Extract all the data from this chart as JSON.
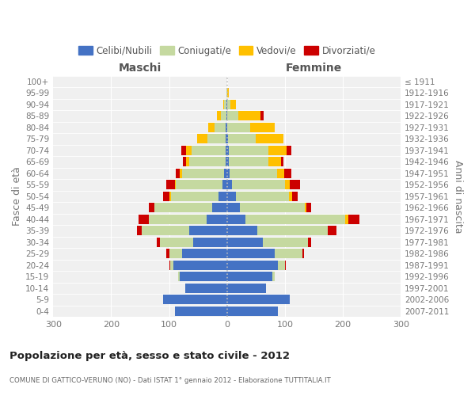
{
  "age_groups": [
    "0-4",
    "5-9",
    "10-14",
    "15-19",
    "20-24",
    "25-29",
    "30-34",
    "35-39",
    "40-44",
    "45-49",
    "50-54",
    "55-59",
    "60-64",
    "65-69",
    "70-74",
    "75-79",
    "80-84",
    "85-89",
    "90-94",
    "95-99",
    "100+"
  ],
  "birth_years": [
    "2007-2011",
    "2002-2006",
    "1997-2001",
    "1992-1996",
    "1987-1991",
    "1982-1986",
    "1977-1981",
    "1972-1976",
    "1967-1971",
    "1962-1966",
    "1957-1961",
    "1952-1956",
    "1947-1951",
    "1942-1946",
    "1937-1941",
    "1932-1936",
    "1927-1931",
    "1922-1926",
    "1917-1921",
    "1912-1916",
    "≤ 1911"
  ],
  "males": {
    "celibi": [
      90,
      110,
      72,
      82,
      92,
      78,
      58,
      65,
      35,
      25,
      15,
      8,
      5,
      3,
      3,
      2,
      2,
      1,
      1,
      0,
      0
    ],
    "coniugati": [
      0,
      0,
      0,
      2,
      6,
      22,
      58,
      82,
      100,
      100,
      82,
      80,
      72,
      62,
      58,
      32,
      20,
      10,
      4,
      1,
      0
    ],
    "vedovi": [
      0,
      0,
      0,
      0,
      0,
      0,
      0,
      0,
      0,
      0,
      2,
      2,
      4,
      6,
      10,
      18,
      10,
      6,
      1,
      0,
      0
    ],
    "divorziati": [
      0,
      0,
      0,
      0,
      2,
      5,
      5,
      8,
      18,
      10,
      12,
      15,
      8,
      5,
      8,
      0,
      0,
      0,
      0,
      0,
      0
    ]
  },
  "females": {
    "nubili": [
      88,
      108,
      68,
      78,
      88,
      82,
      62,
      52,
      32,
      22,
      15,
      8,
      5,
      3,
      3,
      2,
      0,
      0,
      0,
      0,
      0
    ],
    "coniugate": [
      0,
      0,
      0,
      4,
      12,
      48,
      78,
      122,
      172,
      112,
      92,
      92,
      82,
      68,
      68,
      48,
      40,
      20,
      6,
      1,
      0
    ],
    "vedove": [
      0,
      0,
      0,
      0,
      0,
      0,
      0,
      0,
      5,
      3,
      5,
      8,
      12,
      22,
      32,
      48,
      42,
      38,
      10,
      2,
      0
    ],
    "divorziate": [
      0,
      0,
      0,
      0,
      2,
      3,
      5,
      15,
      20,
      8,
      10,
      18,
      12,
      5,
      8,
      0,
      0,
      5,
      0,
      0,
      0
    ]
  },
  "colors": {
    "celibi": "#4472C4",
    "coniugati": "#c5d9a0",
    "vedovi": "#ffc000",
    "divorziati": "#cc0000"
  },
  "title": "Popolazione per età, sesso e stato civile - 2012",
  "subtitle": "COMUNE DI GATTICO-VERUNO (NO) - Dati ISTAT 1° gennaio 2012 - Elaborazione TUTTITALIA.IT",
  "xlabel_left": "Maschi",
  "xlabel_right": "Femmine",
  "ylabel_left": "Fasce di età",
  "ylabel_right": "Anni di nascita",
  "xlim": 300,
  "background_color": "#ffffff",
  "plot_bg_color": "#f0f0f0",
  "grid_color": "#ffffff"
}
